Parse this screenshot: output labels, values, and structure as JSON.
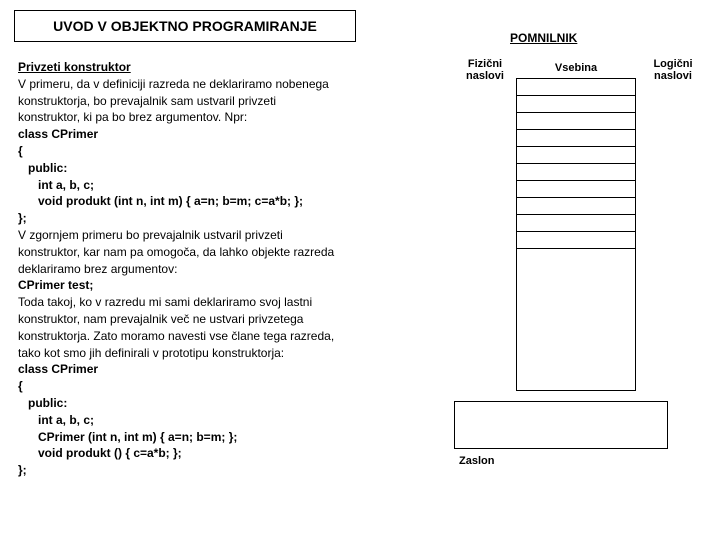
{
  "title": "UVOD V OBJEKTNO PROGRAMIRANJE",
  "memory": {
    "heading": "POMNILNIK",
    "physical_label": "Fizični naslovi",
    "content_label": "Vsebina",
    "logical_label": "Logični naslovi",
    "screen_label": "Zaslon",
    "row_count": 10
  },
  "content": {
    "l1": "Privzeti konstruktor",
    "l2": "V primeru, da v definiciji razreda ne deklariramo nobenega",
    "l3": "konstruktorja, bo prevajalnik sam ustvaril privzeti",
    "l4": "konstruktor, ki pa bo brez argumentov. Npr:",
    "l5": "class CPrimer",
    "l6": "{",
    "l7": "public:",
    "l8": "int a, b, c;",
    "l9": "void produkt (int n, int m) { a=n; b=m; c=a*b; };",
    "l10": "};",
    "l11": "V zgornjem primeru bo prevajalnik ustvaril privzeti",
    "l12": "konstruktor, kar nam pa omogoča, da lahko objekte razreda",
    "l13": "deklariramo brez argumentov:",
    "l14": "CPrimer test;",
    "l15": "Toda takoj, ko v razredu mi sami deklariramo svoj lastni",
    "l16": "konstruktor, nam prevajalnik več ne ustvari privzetega",
    "l17": "konstruktorja. Zato moramo navesti vse člane tega razreda,",
    "l18": "tako kot smo jih definirali v prototipu konstruktorja:",
    "l19": "class CPrimer",
    "l20": "{",
    "l21": "public:",
    "l22": "int a, b, c;",
    "l23": "CPrimer (int n, int m) { a=n; b=m; };",
    "l24": "void produkt () { c=a*b; };",
    "l25": "};"
  }
}
